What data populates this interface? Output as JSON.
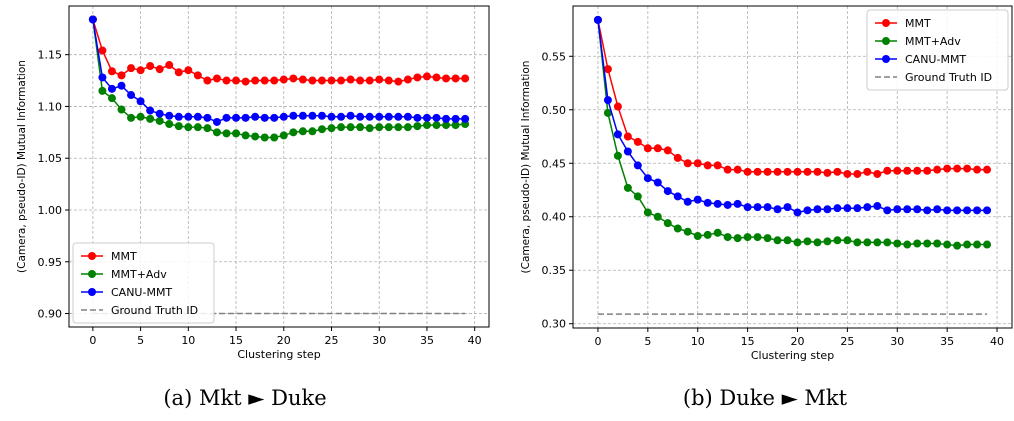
{
  "chart_data": [
    {
      "type": "line",
      "caption": "(a) Mkt ► Duke",
      "xlabel": "Clustering step",
      "ylabel": "(Camera, pseudo-ID) Mutual Information",
      "xlim": [
        -2.5,
        41.5
      ],
      "ylim": [
        0.887,
        1.197
      ],
      "xticks": [
        0,
        5,
        10,
        15,
        20,
        25,
        30,
        35,
        40
      ],
      "yticks": [
        0.9,
        0.95,
        1.0,
        1.05,
        1.1,
        1.15
      ],
      "ytick_labels": [
        "0.90",
        "0.95",
        "1.00",
        "1.05",
        "1.10",
        "1.15"
      ],
      "grid": true,
      "legend_position": "lower-left",
      "x": [
        0,
        1,
        2,
        3,
        4,
        5,
        6,
        7,
        8,
        9,
        10,
        11,
        12,
        13,
        14,
        15,
        16,
        17,
        18,
        19,
        20,
        21,
        22,
        23,
        24,
        25,
        26,
        27,
        28,
        29,
        30,
        31,
        32,
        33,
        34,
        35,
        36,
        37,
        38,
        39
      ],
      "series": [
        {
          "name": "MMT",
          "color": "#ff0000",
          "marker": true,
          "values": [
            1.184,
            1.154,
            1.134,
            1.13,
            1.137,
            1.135,
            1.139,
            1.136,
            1.14,
            1.133,
            1.135,
            1.13,
            1.125,
            1.127,
            1.125,
            1.125,
            1.124,
            1.125,
            1.125,
            1.125,
            1.126,
            1.127,
            1.126,
            1.125,
            1.125,
            1.125,
            1.125,
            1.126,
            1.125,
            1.125,
            1.126,
            1.125,
            1.124,
            1.126,
            1.128,
            1.129,
            1.128,
            1.127,
            1.127,
            1.127
          ]
        },
        {
          "name": "MMT+Adv",
          "color": "#008000",
          "marker": true,
          "values": [
            1.184,
            1.115,
            1.108,
            1.097,
            1.089,
            1.09,
            1.088,
            1.086,
            1.083,
            1.081,
            1.08,
            1.08,
            1.079,
            1.075,
            1.074,
            1.074,
            1.072,
            1.071,
            1.07,
            1.07,
            1.072,
            1.075,
            1.076,
            1.076,
            1.078,
            1.079,
            1.08,
            1.08,
            1.08,
            1.079,
            1.08,
            1.08,
            1.08,
            1.08,
            1.081,
            1.082,
            1.082,
            1.082,
            1.082,
            1.083
          ]
        },
        {
          "name": "CANU-MMT",
          "color": "#0000ff",
          "marker": true,
          "values": [
            1.184,
            1.128,
            1.117,
            1.12,
            1.111,
            1.105,
            1.096,
            1.093,
            1.091,
            1.09,
            1.09,
            1.09,
            1.089,
            1.085,
            1.089,
            1.089,
            1.089,
            1.09,
            1.089,
            1.089,
            1.09,
            1.091,
            1.091,
            1.091,
            1.091,
            1.09,
            1.09,
            1.091,
            1.09,
            1.09,
            1.09,
            1.09,
            1.09,
            1.09,
            1.089,
            1.089,
            1.089,
            1.088,
            1.088,
            1.088
          ]
        },
        {
          "name": "Ground Truth ID",
          "color": "#808080",
          "marker": false,
          "dashed": true,
          "values": [
            0.9,
            0.9,
            0.9,
            0.9,
            0.9,
            0.9,
            0.9,
            0.9,
            0.9,
            0.9,
            0.9,
            0.9,
            0.9,
            0.9,
            0.9,
            0.9,
            0.9,
            0.9,
            0.9,
            0.9,
            0.9,
            0.9,
            0.9,
            0.9,
            0.9,
            0.9,
            0.9,
            0.9,
            0.9,
            0.9,
            0.9,
            0.9,
            0.9,
            0.9,
            0.9,
            0.9,
            0.9,
            0.9,
            0.9,
            0.9
          ]
        }
      ]
    },
    {
      "type": "line",
      "caption": "(b) Duke ► Mkt",
      "xlabel": "Clustering step",
      "ylabel": "(Camera, pseudo-ID) Mutual Information",
      "xlim": [
        -2.5,
        41.5
      ],
      "ylim": [
        0.296,
        0.597
      ],
      "xticks": [
        0,
        5,
        10,
        15,
        20,
        25,
        30,
        35,
        40
      ],
      "yticks": [
        0.3,
        0.35,
        0.4,
        0.45,
        0.5,
        0.55
      ],
      "ytick_labels": [
        "0.30",
        "0.35",
        "0.40",
        "0.45",
        "0.50",
        "0.55"
      ],
      "grid": true,
      "legend_position": "top-right",
      "x": [
        0,
        1,
        2,
        3,
        4,
        5,
        6,
        7,
        8,
        9,
        10,
        11,
        12,
        13,
        14,
        15,
        16,
        17,
        18,
        19,
        20,
        21,
        22,
        23,
        24,
        25,
        26,
        27,
        28,
        29,
        30,
        31,
        32,
        33,
        34,
        35,
        36,
        37,
        38,
        39
      ],
      "series": [
        {
          "name": "MMT",
          "color": "#ff0000",
          "marker": true,
          "values": [
            0.584,
            0.538,
            0.503,
            0.475,
            0.47,
            0.464,
            0.464,
            0.462,
            0.455,
            0.45,
            0.45,
            0.448,
            0.448,
            0.444,
            0.444,
            0.442,
            0.442,
            0.442,
            0.442,
            0.442,
            0.442,
            0.442,
            0.442,
            0.441,
            0.442,
            0.44,
            0.44,
            0.442,
            0.44,
            0.443,
            0.443,
            0.443,
            0.443,
            0.443,
            0.444,
            0.445,
            0.445,
            0.445,
            0.444,
            0.444
          ]
        },
        {
          "name": "MMT+Adv",
          "color": "#008000",
          "marker": true,
          "values": [
            0.584,
            0.497,
            0.457,
            0.427,
            0.419,
            0.404,
            0.4,
            0.394,
            0.389,
            0.386,
            0.382,
            0.383,
            0.385,
            0.381,
            0.38,
            0.381,
            0.381,
            0.38,
            0.378,
            0.378,
            0.376,
            0.377,
            0.376,
            0.377,
            0.378,
            0.378,
            0.376,
            0.376,
            0.376,
            0.376,
            0.375,
            0.374,
            0.375,
            0.375,
            0.375,
            0.374,
            0.373,
            0.374,
            0.374,
            0.374
          ]
        },
        {
          "name": "CANU-MMT",
          "color": "#0000ff",
          "marker": true,
          "values": [
            0.584,
            0.509,
            0.477,
            0.461,
            0.448,
            0.436,
            0.432,
            0.424,
            0.419,
            0.414,
            0.416,
            0.413,
            0.412,
            0.411,
            0.412,
            0.409,
            0.409,
            0.409,
            0.407,
            0.409,
            0.404,
            0.406,
            0.407,
            0.407,
            0.408,
            0.408,
            0.408,
            0.409,
            0.41,
            0.406,
            0.407,
            0.407,
            0.407,
            0.406,
            0.407,
            0.406,
            0.406,
            0.406,
            0.406,
            0.406
          ]
        },
        {
          "name": "Ground Truth ID",
          "color": "#808080",
          "marker": false,
          "dashed": true,
          "values": [
            0.309,
            0.309,
            0.309,
            0.309,
            0.309,
            0.309,
            0.309,
            0.309,
            0.309,
            0.309,
            0.309,
            0.309,
            0.309,
            0.309,
            0.309,
            0.309,
            0.309,
            0.309,
            0.309,
            0.309,
            0.309,
            0.309,
            0.309,
            0.309,
            0.309,
            0.309,
            0.309,
            0.309,
            0.309,
            0.309,
            0.309,
            0.309,
            0.309,
            0.309,
            0.309,
            0.309,
            0.309,
            0.309,
            0.309,
            0.309
          ]
        }
      ]
    }
  ]
}
